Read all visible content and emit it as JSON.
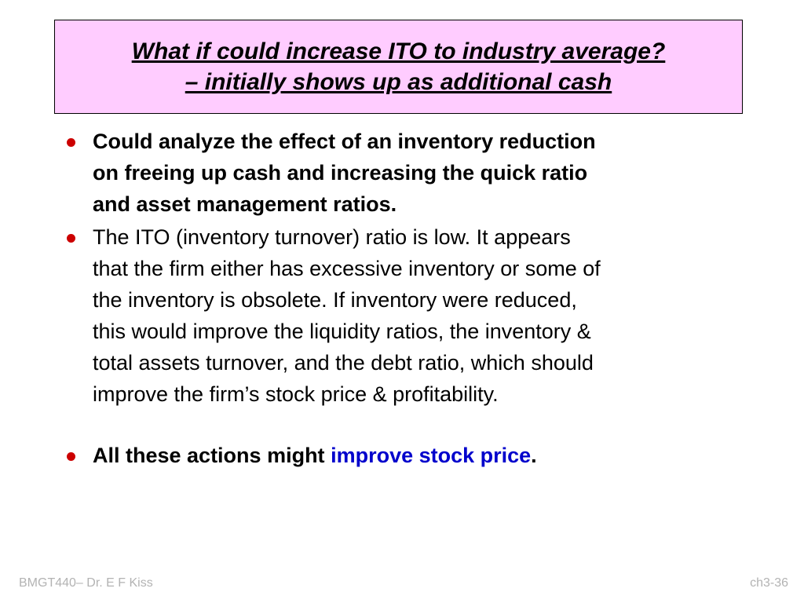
{
  "slide": {
    "title_lines": [
      "What if could increase ITO to industry average?",
      "– initially shows up as additional cash"
    ],
    "bullets": [
      {
        "lines": [
          "Could analyze the effect of an inventory reduction",
          "on freeing up cash and increasing the quick ratio",
          "and asset management ratios."
        ]
      },
      {
        "lines": [
          "The ITO (inventory turnover) ratio is low.  It appears",
          "that the firm either has excessive inventory or some of",
          "the inventory is obsolete.  If inventory were reduced,",
          "this would improve the liquidity ratios, the inventory &",
          "total assets turnover, and the debt ratio, which should",
          "improve the firm’s stock price & profitability."
        ]
      },
      {
        "prefix": "All these actions might ",
        "highlight": "improve stock price",
        "suffix": "."
      }
    ]
  },
  "footer": {
    "left": "BMGT440– Dr. E F Kiss",
    "right": "ch3-36"
  },
  "colors": {
    "title_background": "#ffccff",
    "bullet": "#cc0000",
    "highlight": "#0000cc",
    "footer_text": "#b3b3b3"
  }
}
